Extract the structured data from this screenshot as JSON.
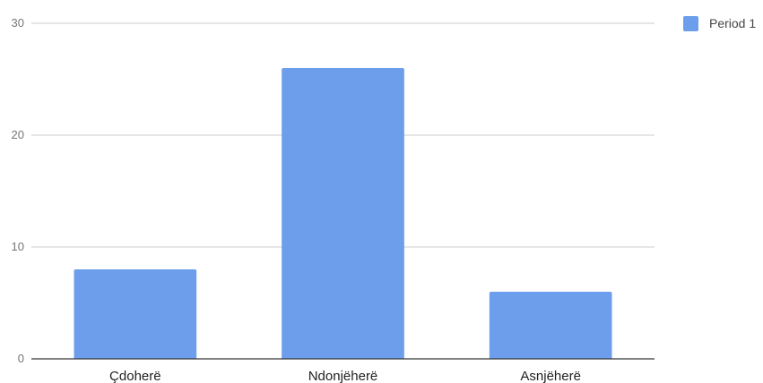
{
  "chart_data": {
    "type": "bar",
    "categories": [
      "Çdoherë",
      "Ndonjëherë",
      "Asnjëherë"
    ],
    "series": [
      {
        "name": "Period 1",
        "values": [
          8,
          26,
          6
        ],
        "color": "#6d9eeb"
      }
    ],
    "y_ticks": [
      "0",
      "10",
      "20",
      "30"
    ],
    "ylim": [
      0,
      30
    ],
    "grid": true,
    "legend_position": "top-right",
    "title": "",
    "xlabel": "",
    "ylabel": ""
  },
  "colors": {
    "bar": "#6d9eeb",
    "gridline": "#cccccc",
    "axis": "#333333",
    "tick_text": "#757575",
    "category_text": "#222222"
  }
}
